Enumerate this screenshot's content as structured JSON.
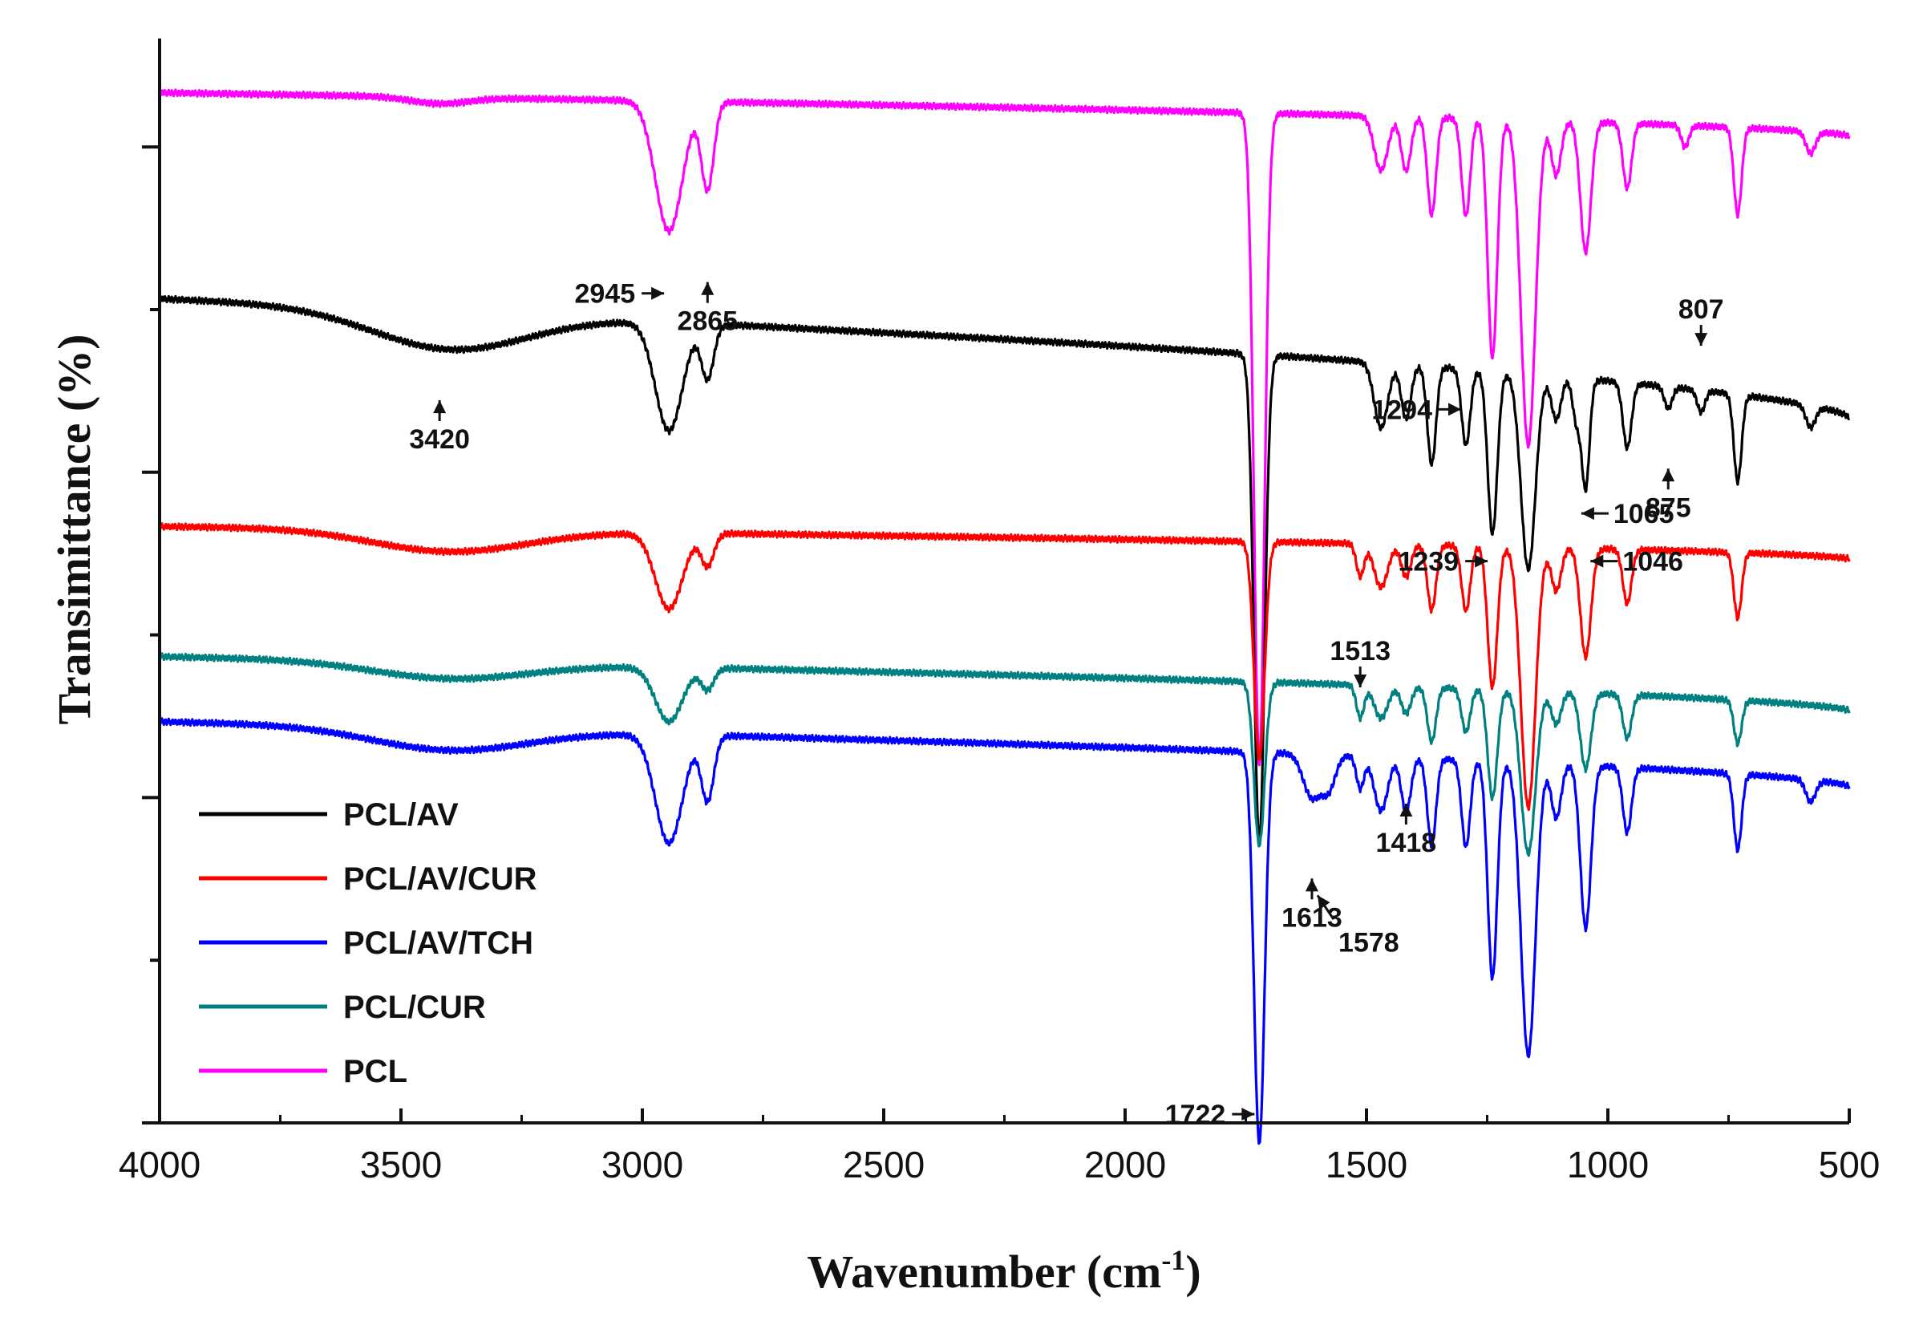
{
  "chart_data": {
    "type": "line",
    "xlabel": "Wavenumber (cm",
    "xlabel_sup": "-1",
    "xlabel_close": ")",
    "ylabel": "Transimittance (%)",
    "xlim": [
      4000,
      500
    ],
    "ylim": [
      0,
      100
    ],
    "x_ticks": [
      4000,
      3500,
      3000,
      2500,
      2000,
      1500,
      1000,
      500
    ],
    "x_tick_labels": [
      "4000",
      "3500",
      "3000",
      "2500",
      "2000",
      "1500",
      "1000",
      "500"
    ],
    "y_ticks": [
      0,
      15,
      30,
      45,
      60,
      75,
      90
    ],
    "legend_position": "bottom-left",
    "series": [
      {
        "name": "PCL",
        "color": "#ff00ff",
        "baseline": 95,
        "tail": 91,
        "bands": [
          [
            3420,
            0.6,
            60
          ],
          [
            2945,
            12,
            28
          ],
          [
            2865,
            8,
            13
          ],
          [
            1722,
            60,
            11
          ],
          [
            1470,
            5,
            14
          ],
          [
            1418,
            5,
            10
          ],
          [
            1365,
            9,
            9
          ],
          [
            1294,
            9,
            9
          ],
          [
            1239,
            22,
            10
          ],
          [
            1165,
            30,
            15
          ],
          [
            1107,
            5,
            10
          ],
          [
            1046,
            12,
            11
          ],
          [
            960,
            6,
            9
          ],
          [
            840,
            2,
            8
          ],
          [
            731,
            8,
            8
          ],
          [
            580,
            2,
            10
          ]
        ]
      },
      {
        "name": "PCL/AV",
        "color": "#000000",
        "baseline": 76,
        "tail": 65,
        "bands": [
          [
            3400,
            3.5,
            160
          ],
          [
            2945,
            10,
            28
          ],
          [
            2865,
            5,
            13
          ],
          [
            1722,
            45,
            11
          ],
          [
            1470,
            6,
            14
          ],
          [
            1418,
            5,
            10
          ],
          [
            1365,
            9,
            9
          ],
          [
            1294,
            7,
            9
          ],
          [
            1239,
            15,
            10
          ],
          [
            1165,
            18,
            15
          ],
          [
            1107,
            4,
            10
          ],
          [
            1065,
            4,
            8
          ],
          [
            1046,
            10,
            8
          ],
          [
            960,
            6,
            9
          ],
          [
            875,
            2,
            8
          ],
          [
            807,
            2,
            8
          ],
          [
            731,
            8,
            8
          ],
          [
            580,
            2,
            10
          ]
        ]
      },
      {
        "name": "PCL/AV/CUR",
        "color": "#ff0000",
        "baseline": 55,
        "tail": 52,
        "bands": [
          [
            3400,
            2,
            160
          ],
          [
            2945,
            7,
            28
          ],
          [
            2865,
            3,
            13
          ],
          [
            1722,
            20,
            11
          ],
          [
            1513,
            3,
            8
          ],
          [
            1470,
            4,
            14
          ],
          [
            1418,
            3,
            10
          ],
          [
            1365,
            6,
            9
          ],
          [
            1294,
            6,
            9
          ],
          [
            1239,
            13,
            10
          ],
          [
            1165,
            24,
            15
          ],
          [
            1107,
            4,
            10
          ],
          [
            1046,
            10,
            11
          ],
          [
            960,
            5,
            9
          ],
          [
            731,
            6,
            8
          ]
        ]
      },
      {
        "name": "PCL/CUR",
        "color": "#008080",
        "baseline": 43,
        "tail": 38,
        "bands": [
          [
            3400,
            1.5,
            160
          ],
          [
            2945,
            5,
            28
          ],
          [
            2865,
            2,
            13
          ],
          [
            1722,
            15,
            11
          ],
          [
            1513,
            3,
            8
          ],
          [
            1470,
            3,
            14
          ],
          [
            1418,
            2.5,
            10
          ],
          [
            1365,
            5,
            9
          ],
          [
            1294,
            4,
            9
          ],
          [
            1239,
            10,
            10
          ],
          [
            1165,
            15,
            15
          ],
          [
            1107,
            3,
            10
          ],
          [
            1046,
            7,
            11
          ],
          [
            960,
            4,
            9
          ],
          [
            731,
            4,
            8
          ]
        ]
      },
      {
        "name": "PCL/AV/TCH",
        "color": "#0000ff",
        "baseline": 37,
        "tail": 31,
        "bands": [
          [
            3400,
            2,
            160
          ],
          [
            2945,
            10,
            28
          ],
          [
            2865,
            6,
            13
          ],
          [
            1722,
            36,
            11
          ],
          [
            1613,
            4,
            18
          ],
          [
            1578,
            3,
            14
          ],
          [
            1513,
            3,
            8
          ],
          [
            1470,
            5,
            14
          ],
          [
            1418,
            5,
            10
          ],
          [
            1365,
            8,
            9
          ],
          [
            1294,
            8,
            9
          ],
          [
            1239,
            20,
            10
          ],
          [
            1165,
            27,
            15
          ],
          [
            1107,
            5,
            10
          ],
          [
            1046,
            15,
            11
          ],
          [
            960,
            6,
            9
          ],
          [
            731,
            7,
            8
          ],
          [
            580,
            2,
            10
          ]
        ]
      }
    ],
    "legend": [
      {
        "label": "PCL/AV",
        "color": "#000000"
      },
      {
        "label": "PCL/AV/CUR",
        "color": "#ff0000"
      },
      {
        "label": "PCL/AV/TCH",
        "color": "#0000ff"
      },
      {
        "label": "PCL/CUR",
        "color": "#008080"
      },
      {
        "label": "PCL",
        "color": "#ff00ff"
      }
    ],
    "annotations": [
      {
        "text": "2945",
        "wavenumber": 2945,
        "y": 76.5,
        "arrow": "right"
      },
      {
        "text": "2865",
        "wavenumber": 2865,
        "y": 76.5,
        "arrow": "up"
      },
      {
        "text": "3420",
        "wavenumber": 3420,
        "y": 65.6,
        "arrow": "up"
      },
      {
        "text": "1294",
        "wavenumber": 1294,
        "y": 65.8,
        "arrow": "right"
      },
      {
        "text": "807",
        "wavenumber": 807,
        "y": 72.7,
        "arrow": "down"
      },
      {
        "text": "875",
        "wavenumber": 875,
        "y": 59.3,
        "arrow": "up"
      },
      {
        "text": "1065",
        "wavenumber": 1065,
        "y": 56.2,
        "arrow": "left"
      },
      {
        "text": "1239",
        "wavenumber": 1239,
        "y": 51.8,
        "arrow": "right"
      },
      {
        "text": "1046",
        "wavenumber": 1046,
        "y": 51.8,
        "arrow": "left"
      },
      {
        "text": "1513",
        "wavenumber": 1513,
        "y": 41.2,
        "arrow": "down"
      },
      {
        "text": "1418",
        "wavenumber": 1418,
        "y": 28.4,
        "arrow": "up"
      },
      {
        "text": "1613",
        "wavenumber": 1613,
        "y": 21.5,
        "arrow": "up"
      },
      {
        "text": "1578",
        "wavenumber": 1578,
        "y": 19.8,
        "arrow": "upleft"
      },
      {
        "text": "1722",
        "wavenumber": 1722,
        "y": 0.8,
        "arrow": "right"
      }
    ]
  }
}
